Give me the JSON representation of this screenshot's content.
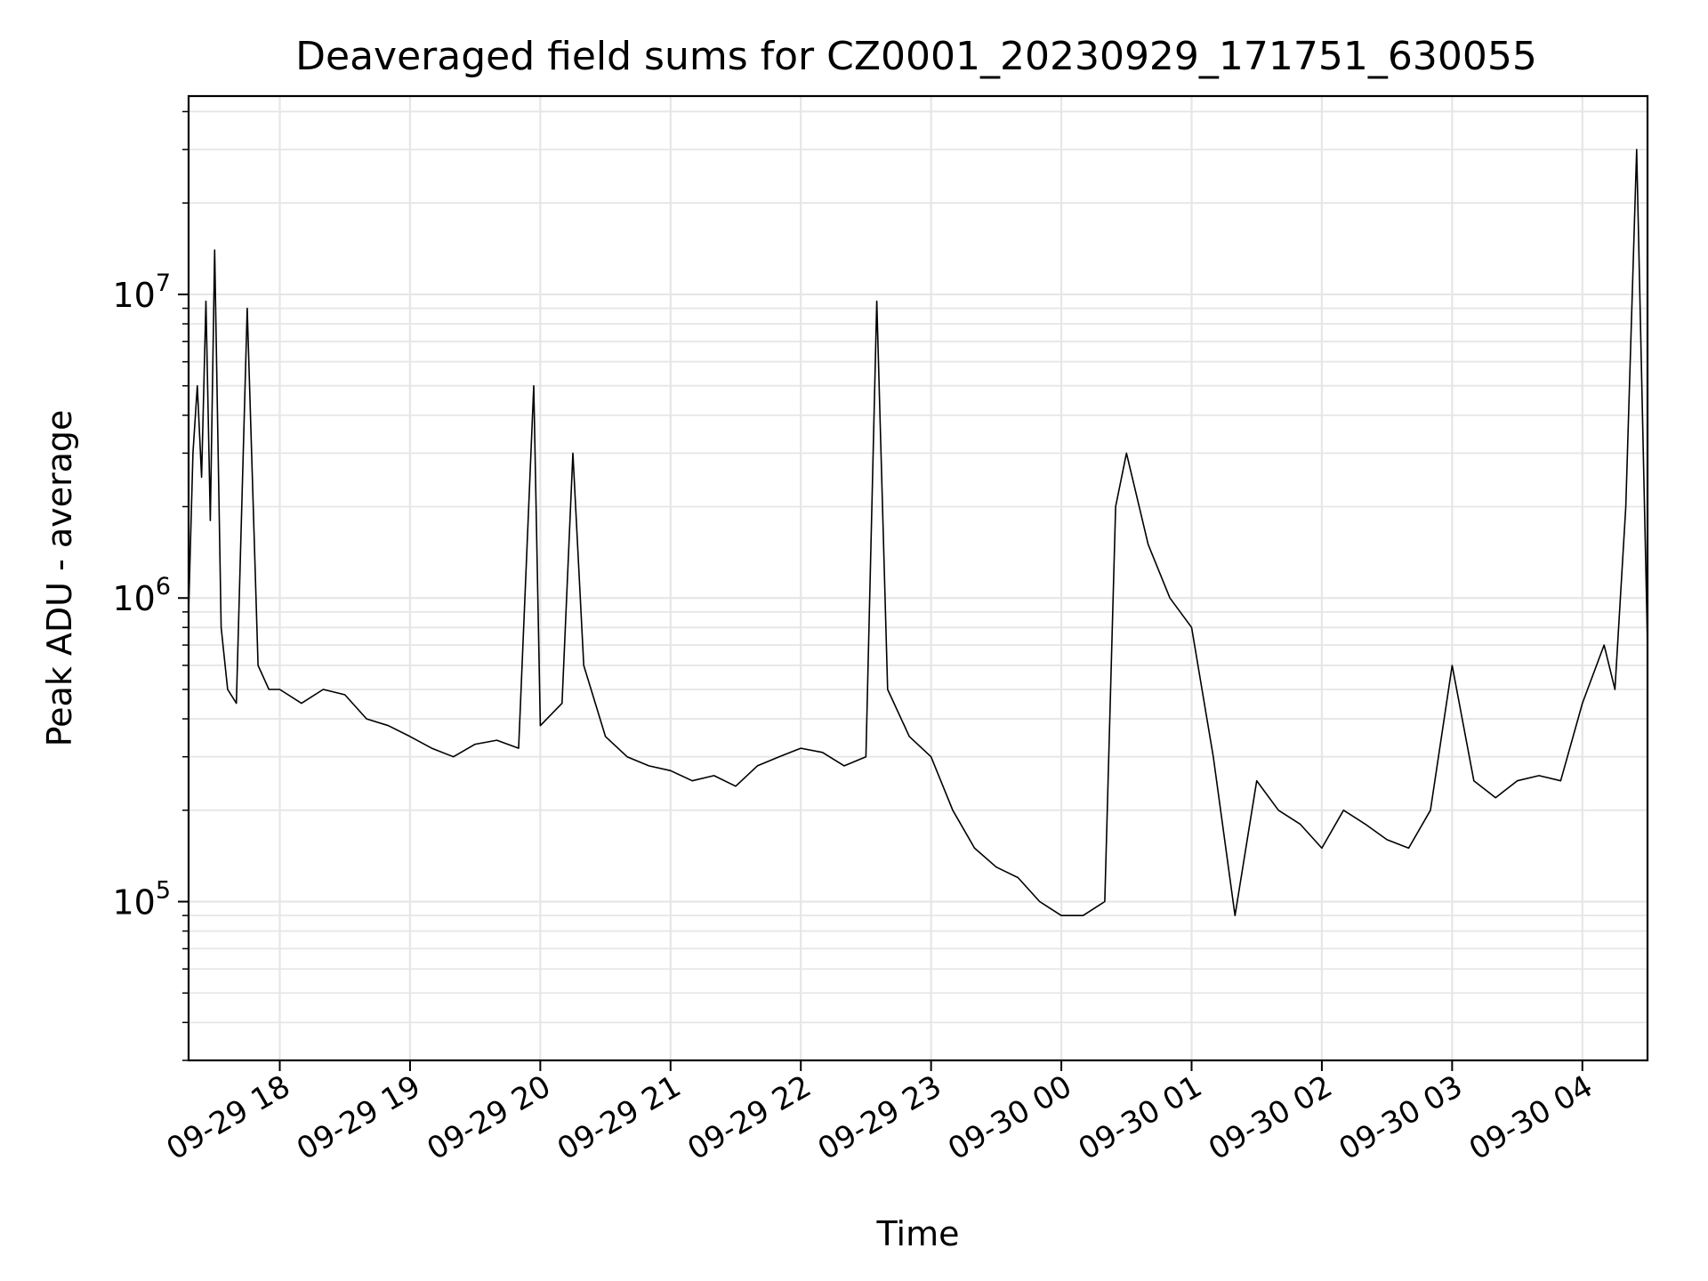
{
  "chart_data": {
    "type": "line",
    "title": "Deaveraged field sums for CZ0001_20230929_171751_630055",
    "xlabel": "Time",
    "ylabel": "Peak ADU - average",
    "yscale": "log",
    "ylim": [
      30000,
      45000000
    ],
    "xlim": [
      "2023-09-29 17:18",
      "2023-09-30 04:30"
    ],
    "grid": true,
    "legend": "none",
    "x_ticks": [
      {
        "value": "2023-09-29 18:00",
        "label": "09-29 18"
      },
      {
        "value": "2023-09-29 19:00",
        "label": "09-29 19"
      },
      {
        "value": "2023-09-29 20:00",
        "label": "09-29 20"
      },
      {
        "value": "2023-09-29 21:00",
        "label": "09-29 21"
      },
      {
        "value": "2023-09-29 22:00",
        "label": "09-29 22"
      },
      {
        "value": "2023-09-29 23:00",
        "label": "09-29 23"
      },
      {
        "value": "2023-09-30 00:00",
        "label": "09-30 00"
      },
      {
        "value": "2023-09-30 01:00",
        "label": "09-30 01"
      },
      {
        "value": "2023-09-30 02:00",
        "label": "09-30 02"
      },
      {
        "value": "2023-09-30 03:00",
        "label": "09-30 03"
      },
      {
        "value": "2023-09-30 04:00",
        "label": "09-30 04"
      }
    ],
    "y_ticks": [
      {
        "value": 100000,
        "base": "10",
        "exp": "5"
      },
      {
        "value": 1000000,
        "base": "10",
        "exp": "6"
      },
      {
        "value": 10000000,
        "base": "10",
        "exp": "7"
      }
    ],
    "series_color": "#000000",
    "grid_color": "#e6e6e6",
    "series": [
      {
        "x": [
          "2023-09-29 17:18",
          "2023-09-29 17:20",
          "2023-09-29 17:22",
          "2023-09-29 17:24",
          "2023-09-29 17:26",
          "2023-09-29 17:28",
          "2023-09-29 17:30",
          "2023-09-29 17:33",
          "2023-09-29 17:36",
          "2023-09-29 17:40",
          "2023-09-29 17:45",
          "2023-09-29 17:50",
          "2023-09-29 17:55",
          "2023-09-29 18:00",
          "2023-09-29 18:10",
          "2023-09-29 18:20",
          "2023-09-29 18:30",
          "2023-09-29 18:40",
          "2023-09-29 18:50",
          "2023-09-29 19:00",
          "2023-09-29 19:10",
          "2023-09-29 19:20",
          "2023-09-29 19:30",
          "2023-09-29 19:40",
          "2023-09-29 19:50",
          "2023-09-29 19:57",
          "2023-09-29 20:00",
          "2023-09-29 20:10",
          "2023-09-29 20:15",
          "2023-09-29 20:20",
          "2023-09-29 20:30",
          "2023-09-29 20:40",
          "2023-09-29 20:50",
          "2023-09-29 21:00",
          "2023-09-29 21:10",
          "2023-09-29 21:20",
          "2023-09-29 21:30",
          "2023-09-29 21:40",
          "2023-09-29 21:50",
          "2023-09-29 22:00",
          "2023-09-29 22:10",
          "2023-09-29 22:20",
          "2023-09-29 22:30",
          "2023-09-29 22:35",
          "2023-09-29 22:40",
          "2023-09-29 22:50",
          "2023-09-29 23:00",
          "2023-09-29 23:10",
          "2023-09-29 23:20",
          "2023-09-29 23:30",
          "2023-09-29 23:40",
          "2023-09-29 23:50",
          "2023-09-30 00:00",
          "2023-09-30 00:10",
          "2023-09-30 00:20",
          "2023-09-30 00:25",
          "2023-09-30 00:30",
          "2023-09-30 00:40",
          "2023-09-30 00:50",
          "2023-09-30 01:00",
          "2023-09-30 01:10",
          "2023-09-30 01:20",
          "2023-09-30 01:30",
          "2023-09-30 01:40",
          "2023-09-30 01:50",
          "2023-09-30 02:00",
          "2023-09-30 02:10",
          "2023-09-30 02:20",
          "2023-09-30 02:30",
          "2023-09-30 02:40",
          "2023-09-30 02:50",
          "2023-09-30 03:00",
          "2023-09-30 03:10",
          "2023-09-30 03:20",
          "2023-09-30 03:30",
          "2023-09-30 03:40",
          "2023-09-30 03:50",
          "2023-09-30 04:00",
          "2023-09-30 04:10",
          "2023-09-30 04:15",
          "2023-09-30 04:20",
          "2023-09-30 04:25",
          "2023-09-30 04:30"
        ],
        "y": [
          900000,
          3000000,
          5000000,
          2500000,
          9500000,
          1800000,
          14000000,
          800000,
          500000,
          450000,
          9000000,
          600000,
          500000,
          500000,
          450000,
          500000,
          480000,
          400000,
          380000,
          350000,
          320000,
          300000,
          330000,
          340000,
          320000,
          5000000,
          380000,
          450000,
          3000000,
          600000,
          350000,
          300000,
          280000,
          270000,
          250000,
          260000,
          240000,
          280000,
          300000,
          320000,
          310000,
          280000,
          300000,
          9500000,
          500000,
          350000,
          300000,
          200000,
          150000,
          130000,
          120000,
          100000,
          90000,
          90000,
          100000,
          2000000,
          3000000,
          1500000,
          1000000,
          800000,
          300000,
          90000,
          250000,
          200000,
          180000,
          150000,
          200000,
          180000,
          160000,
          150000,
          200000,
          600000,
          250000,
          220000,
          250000,
          260000,
          250000,
          450000,
          700000,
          500000,
          2000000,
          30000000,
          700000
        ]
      }
    ]
  }
}
